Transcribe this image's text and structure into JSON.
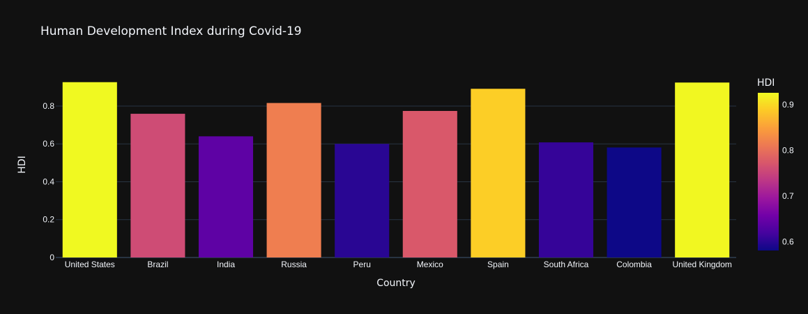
{
  "chart_data": {
    "type": "bar",
    "title": "Human Development Index during Covid-19",
    "xlabel": "Country",
    "ylabel": "HDI",
    "categories": [
      "United States",
      "Brazil",
      "India",
      "Russia",
      "Peru",
      "Mexico",
      "Spain",
      "South Africa",
      "Colombia",
      "United Kingdom"
    ],
    "values": [
      0.926,
      0.759,
      0.64,
      0.816,
      0.6,
      0.774,
      0.891,
      0.608,
      0.581,
      0.924
    ],
    "ylim": [
      0,
      0.973
    ],
    "yticks": [
      0,
      0.2,
      0.4,
      0.6,
      0.8
    ],
    "ytick_labels": [
      "0",
      "0.2",
      "0.4",
      "0.6",
      "0.8"
    ],
    "grid": true,
    "colorbar": {
      "title": "HDI",
      "range": [
        0.581,
        0.926
      ],
      "ticks": [
        0.6,
        0.7,
        0.8,
        0.9
      ],
      "tick_labels": [
        "0.6",
        "0.7",
        "0.8",
        "0.9"
      ],
      "colorscale": [
        "#0d0887",
        "#46039f",
        "#7201a8",
        "#9c179e",
        "#bd3786",
        "#d8576b",
        "#ed7953",
        "#fb9f3a",
        "#fdca26",
        "#f0f921"
      ]
    },
    "colors": {
      "background": "#111111",
      "grid": "#283442",
      "text": "#f2f5fa"
    }
  }
}
